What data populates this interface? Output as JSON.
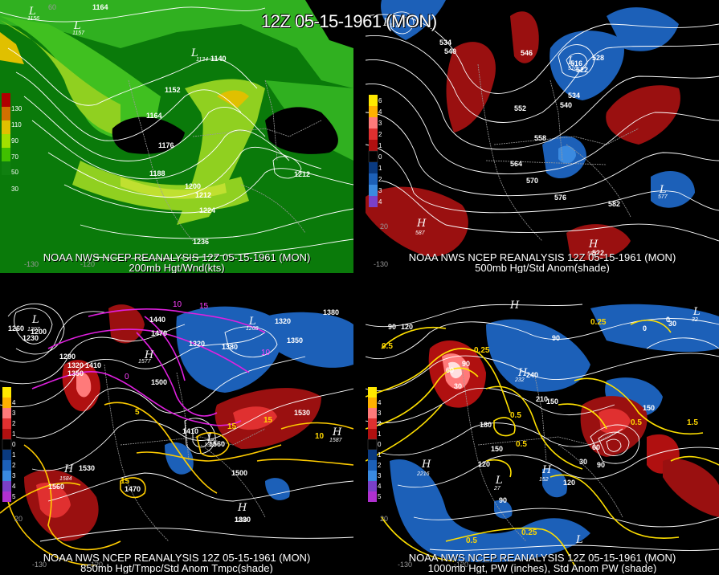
{
  "title": "12Z 05-15-1961 (MON)",
  "legend_anom_ticks": [
    "6",
    "5",
    "4",
    "3",
    "2",
    "1",
    "0",
    "1",
    "2",
    "3",
    "4",
    "5"
  ],
  "legend_anom_colors": [
    "#ffe800",
    "#ffb000",
    "#ff7a7a",
    "#e03030",
    "#b01010",
    "#800000",
    "#000000",
    "#0a3a80",
    "#1c60b8",
    "#3a8ae0",
    "#7a40c8",
    "#b030d0"
  ],
  "panels": [
    {
      "id": "200mb",
      "caption_line1": "NOAA NWS NCEP REANALYSIS 12Z 05-15-1961 (MON)",
      "caption_line2": "200mb Hgt/Wnd(kts)",
      "legend_ticks": [
        "130",
        "110",
        "90",
        "70",
        "50",
        "30"
      ],
      "legend_colors": [
        "#b00000",
        "#d07000",
        "#e0c000",
        "#a0e000",
        "#40c000",
        "#108010"
      ],
      "contour_labels": [
        "1164",
        "1140",
        "1152",
        "1164",
        "1176",
        "1188",
        "1200",
        "1212",
        "1224",
        "1236",
        "1212"
      ],
      "hl": [
        {
          "letter": "L",
          "value": "1156"
        },
        {
          "letter": "L",
          "value": "1157"
        },
        {
          "letter": "L",
          "value": "1134"
        }
      ],
      "lon_labels": [
        "60",
        "-130",
        "-120"
      ]
    },
    {
      "id": "500mb",
      "caption_line1": "NOAA NWS NCEP REANALYSIS 12Z 05-15-1961 (MON)",
      "caption_line2": "500mb Hgt/Std Anom(shade)",
      "contour_labels": [
        "534",
        "540",
        "546",
        "516",
        "528",
        "522",
        "534",
        "540",
        "552",
        "558",
        "564",
        "570",
        "576",
        "582",
        "522"
      ],
      "hl": [
        {
          "letter": "L",
          "value": "518"
        },
        {
          "letter": "L",
          "value": "516"
        },
        {
          "letter": "L",
          "value": "577"
        },
        {
          "letter": "H",
          "value": "587"
        },
        {
          "letter": "H",
          "value": "587"
        }
      ],
      "lon_labels": [
        "-130",
        "20"
      ]
    },
    {
      "id": "850mb",
      "caption_line1": "NOAA NWS NCEP REANALYSIS 12Z 05-15-1961 (MON)",
      "caption_line2": "850mb Hgt/Tmpc/Std Anom Tmpc(shade)",
      "contour_labels": [
        "1260",
        "1200",
        "1230",
        "1290",
        "1320",
        "1350",
        "1410",
        "1440",
        "1470",
        "1320",
        "1380",
        "1320",
        "1350",
        "1380",
        "1500",
        "1530",
        "1410",
        "1560",
        "1470",
        "1530",
        "1560",
        "1500",
        "1330"
      ],
      "temp_labels": [
        "10",
        "15",
        "10",
        "5",
        "15",
        "15",
        "10",
        "15",
        "5",
        "0"
      ],
      "hl": [
        {
          "letter": "L",
          "value": "1207"
        },
        {
          "letter": "H",
          "value": "1577"
        },
        {
          "letter": "L",
          "value": "1268"
        },
        {
          "letter": "L",
          "value": "1353"
        },
        {
          "letter": "H",
          "value": "1584"
        },
        {
          "letter": "H",
          "value": "1587"
        },
        {
          "letter": "H",
          "value": "1330"
        }
      ],
      "lon_labels": [
        "-130",
        "-120",
        "20"
      ]
    },
    {
      "id": "1000mb",
      "caption_line1": "NOAA NWS NCEP REANALYSIS 12Z 05-15-1961 (MON)",
      "caption_line2": "1000mb Hgt, PW (inches), Std Anom PW (shade)",
      "contour_labels": [
        "90",
        "120",
        "0",
        "0",
        "30",
        "90",
        "180",
        "210",
        "240",
        "150",
        "120",
        "90",
        "150",
        "30",
        "60",
        "90",
        "120",
        "90",
        "150",
        "60",
        "30"
      ],
      "pw_labels": [
        "0.25",
        "0.5",
        "0.5",
        "0.5",
        "0.25",
        "0.5",
        "1.5",
        "0.25",
        "0.5"
      ],
      "hl": [
        {
          "letter": "H",
          "value": ""
        },
        {
          "letter": "L",
          "value": "32"
        },
        {
          "letter": "H",
          "value": "232"
        },
        {
          "letter": "H",
          "value": "2216"
        },
        {
          "letter": "H",
          "value": "152"
        },
        {
          "letter": "L",
          "value": "27"
        },
        {
          "letter": "L",
          "value": ""
        }
      ],
      "lon_labels": [
        "-130",
        "-120",
        "20"
      ]
    }
  ]
}
